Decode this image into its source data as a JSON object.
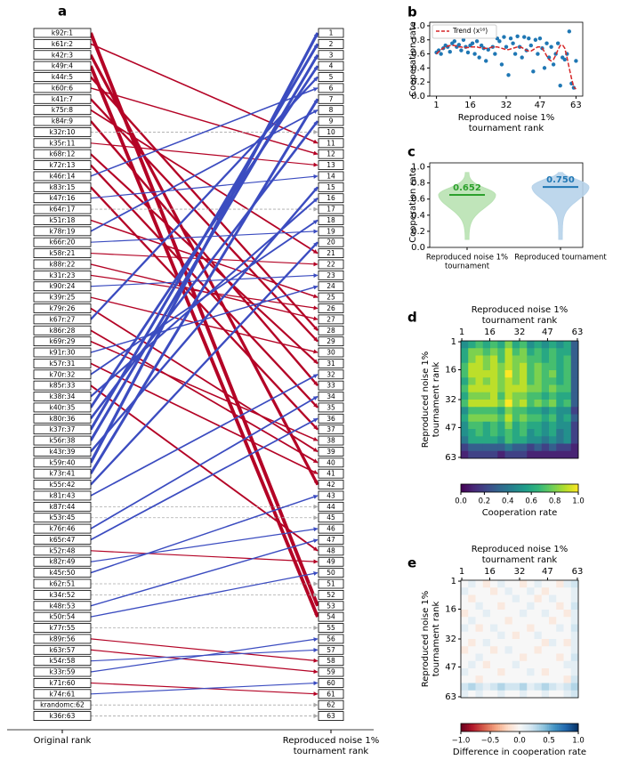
{
  "chart_data": [
    {
      "panel": "a",
      "type": "rank_flow",
      "categories": [
        "k92r:1",
        "k61r:2",
        "k42r:3",
        "k49r:4",
        "k44r:5",
        "k60r:6",
        "k41r:7",
        "k75r:8",
        "k84r:9",
        "k32r:10",
        "k35r:11",
        "k68r:12",
        "k72r:13",
        "k46r:14",
        "k83r:15",
        "k47r:16",
        "k64r:17",
        "k51r:18",
        "k78r:19",
        "k66r:20",
        "k58r:21",
        "k88r:22",
        "k31r:23",
        "k90r:24",
        "k39r:25",
        "k79r:26",
        "k67r:27",
        "k86r:28",
        "k69r:29",
        "k91r:30",
        "k57r:31",
        "k70r:32",
        "k85r:33",
        "k38r:34",
        "k40r:35",
        "k80r:36",
        "k37r:37",
        "k56r:38",
        "k43r:39",
        "k59r:40",
        "k73r:41",
        "k55r:42",
        "k81r:43",
        "k87r:44",
        "k53r:45",
        "k76r:46",
        "k65r:47",
        "k52r:48",
        "k82r:49",
        "k45r:50",
        "k62r:51",
        "k34r:52",
        "k48r:53",
        "k50r:54",
        "k77r:55",
        "k89r:56",
        "k63r:57",
        "k54r:58",
        "k33r:59",
        "k71r:60",
        "k74r:61",
        "krandomc:62",
        "k36r:63"
      ],
      "right_categories": [
        1,
        2,
        3,
        4,
        5,
        6,
        7,
        8,
        9,
        10,
        11,
        12,
        13,
        14,
        15,
        16,
        17,
        18,
        19,
        20,
        21,
        22,
        23,
        24,
        25,
        26,
        27,
        28,
        29,
        30,
        31,
        32,
        33,
        34,
        35,
        36,
        37,
        38,
        39,
        40,
        41,
        42,
        43,
        44,
        45,
        46,
        47,
        48,
        49,
        50,
        51,
        52,
        53,
        54,
        55,
        56,
        57,
        58,
        59,
        60,
        61,
        62,
        63
      ],
      "values": [
        53,
        11,
        42,
        54,
        28,
        12,
        29,
        21,
        33,
        10,
        13,
        31,
        35,
        6,
        37,
        14,
        17,
        25,
        8,
        19,
        22,
        27,
        26,
        23,
        30,
        39,
        5,
        40,
        38,
        24,
        41,
        18,
        48,
        16,
        4,
        9,
        2,
        3,
        15,
        1,
        7,
        20,
        32,
        44,
        45,
        34,
        36,
        49,
        46,
        43,
        51,
        52,
        47,
        50,
        55,
        58,
        59,
        57,
        56,
        61,
        60,
        62,
        63
      ],
      "xlabel": "Original rank",
      "x2label": [
        "Reproduced noise 1%",
        "tournament rank"
      ],
      "colors": {
        "up": "#3b4cc0",
        "down": "#b40426",
        "same": "#aaaaaa"
      }
    },
    {
      "panel": "b",
      "type": "scatter",
      "x": [
        1,
        2,
        3,
        4,
        5,
        6,
        7,
        8,
        9,
        10,
        11,
        12,
        13,
        14,
        15,
        16,
        17,
        18,
        19,
        20,
        21,
        22,
        23,
        24,
        25,
        26,
        27,
        28,
        29,
        30,
        31,
        32,
        33,
        34,
        35,
        36,
        37,
        38,
        39,
        40,
        41,
        42,
        43,
        44,
        45,
        46,
        47,
        48,
        49,
        50,
        51,
        52,
        53,
        54,
        55,
        56,
        57,
        58,
        59,
        60,
        61,
        62,
        63
      ],
      "series": [
        {
          "color": "#1f77b4",
          "values": [
            0.62,
            0.65,
            0.6,
            0.68,
            0.72,
            0.7,
            0.63,
            0.75,
            0.78,
            0.7,
            0.73,
            0.65,
            0.8,
            0.7,
            0.62,
            0.72,
            0.75,
            0.6,
            0.78,
            0.55,
            0.72,
            0.68,
            0.5,
            0.66,
            0.88,
            0.7,
            0.6,
            0.82,
            0.78,
            0.45,
            0.84,
            0.7,
            0.3,
            0.82,
            0.75,
            0.6,
            0.85,
            0.7,
            0.55,
            0.84,
            0.65,
            0.82,
            0.72,
            0.35,
            0.8,
            0.6,
            0.82,
            0.68,
            0.4,
            0.75,
            0.55,
            0.7,
            0.45,
            0.6,
            0.75,
            0.15,
            0.55,
            0.52,
            0.6,
            0.92,
            0.18,
            0.12,
            0.5
          ]
        },
        {
          "name": "Trend (x¹⁶)",
          "color": "#d62728",
          "style": "dashed",
          "values": [
            0.6,
            0.63,
            0.66,
            0.68,
            0.7,
            0.71,
            0.72,
            0.72,
            0.72,
            0.71,
            0.7,
            0.7,
            0.69,
            0.69,
            0.69,
            0.7,
            0.7,
            0.7,
            0.7,
            0.69,
            0.69,
            0.68,
            0.68,
            0.68,
            0.69,
            0.7,
            0.7,
            0.7,
            0.69,
            0.68,
            0.67,
            0.66,
            0.66,
            0.67,
            0.68,
            0.69,
            0.7,
            0.7,
            0.69,
            0.67,
            0.65,
            0.64,
            0.64,
            0.66,
            0.68,
            0.7,
            0.7,
            0.68,
            0.63,
            0.57,
            0.52,
            0.5,
            0.52,
            0.58,
            0.66,
            0.72,
            0.73,
            0.68,
            0.55,
            0.4,
            0.25,
            0.13,
            0.1
          ]
        }
      ],
      "xlim": [
        -2,
        66
      ],
      "ylim": [
        0,
        1.05
      ],
      "xticks": [
        1,
        16,
        32,
        47,
        63
      ],
      "yticks": [
        {
          "value": 0,
          "label": "0.0"
        },
        {
          "value": 0.2,
          "label": "0.2"
        },
        {
          "value": 0.4,
          "label": "0.4"
        },
        {
          "value": 0.6,
          "label": "0.6"
        },
        {
          "value": 0.8,
          "label": "0.8"
        },
        {
          "value": 1,
          "label": "1.0"
        }
      ],
      "xlabel": [
        "Reproduced noise 1%",
        "tournament rank"
      ],
      "ylabel": "Cooperation rate",
      "legend": "upper left"
    },
    {
      "panel": "c",
      "type": "violin",
      "categories": [
        [
          "Reproduced noise 1%",
          "tournament"
        ],
        [
          "Reproduced tournament"
        ]
      ],
      "means": [
        0.652,
        0.75
      ],
      "value_labels": [
        "0.652",
        "0.750"
      ],
      "mins": [
        0.1,
        0.1
      ],
      "maxs": [
        0.93,
        0.93
      ],
      "colors": [
        "#2ca02c",
        "#1f77b4"
      ],
      "fills": [
        "#b9e2b3",
        "#b7d3ea"
      ],
      "ylim": [
        0,
        1.05
      ],
      "yticks": [
        {
          "value": 0,
          "label": "0.0"
        },
        {
          "value": 0.2,
          "label": "0.2"
        },
        {
          "value": 0.4,
          "label": "0.4"
        },
        {
          "value": 0.6,
          "label": "0.6"
        },
        {
          "value": 0.8,
          "label": "0.8"
        },
        {
          "value": 1,
          "label": "1.0"
        }
      ],
      "ylabel": "Cooperation rate"
    },
    {
      "panel": "d",
      "type": "heatmap",
      "title": [
        "Reproduced noise 1%",
        "tournament rank"
      ],
      "ylabel": [
        "Reproduced noise 1%",
        "tournament rank"
      ],
      "xlim": [
        0.5,
        63.5
      ],
      "ylim": [
        63.5,
        0.5
      ],
      "xticks": [
        1,
        16,
        32,
        47,
        63
      ],
      "yticks": [
        1,
        16,
        32,
        47,
        63
      ],
      "colormap": "viridis",
      "clim": [
        0,
        1
      ],
      "cticks": [
        {
          "value": 0,
          "label": "0.0"
        },
        {
          "value": 0.2,
          "label": "0.2"
        },
        {
          "value": 0.4,
          "label": "0.4"
        },
        {
          "value": 0.6,
          "label": "0.6"
        },
        {
          "value": 0.8,
          "label": "0.8"
        },
        {
          "value": 1,
          "label": "1.0"
        }
      ],
      "clabel": "Cooperation rate",
      "values": [
        [
          0.5,
          0.6,
          0.7,
          0.6,
          0.7,
          0.6,
          0.8,
          0.6,
          0.7,
          0.5,
          0.6,
          0.5,
          0.6,
          0.5,
          0.6,
          0.3
        ],
        [
          0.6,
          0.8,
          0.8,
          0.7,
          0.8,
          0.7,
          0.9,
          0.7,
          0.8,
          0.6,
          0.7,
          0.6,
          0.7,
          0.6,
          0.6,
          0.3
        ],
        [
          0.6,
          0.8,
          0.9,
          0.8,
          0.9,
          0.7,
          0.9,
          0.8,
          0.8,
          0.7,
          0.7,
          0.6,
          0.7,
          0.6,
          0.7,
          0.3
        ],
        [
          0.7,
          0.9,
          0.9,
          0.8,
          0.9,
          0.8,
          0.9,
          0.8,
          0.9,
          0.7,
          0.8,
          0.7,
          0.7,
          0.6,
          0.7,
          0.3
        ],
        [
          0.7,
          0.9,
          0.9,
          0.9,
          0.9,
          0.8,
          1.0,
          0.8,
          0.9,
          0.7,
          0.8,
          0.7,
          0.8,
          0.6,
          0.7,
          0.3
        ],
        [
          0.6,
          0.8,
          0.9,
          0.8,
          0.9,
          0.8,
          0.9,
          0.8,
          0.9,
          0.7,
          0.8,
          0.7,
          0.7,
          0.6,
          0.7,
          0.3
        ],
        [
          0.7,
          0.9,
          0.9,
          0.9,
          0.9,
          0.8,
          0.9,
          0.9,
          0.9,
          0.8,
          0.8,
          0.7,
          0.8,
          0.7,
          0.7,
          0.3
        ],
        [
          0.6,
          0.8,
          0.8,
          0.8,
          0.9,
          0.7,
          0.9,
          0.8,
          0.8,
          0.7,
          0.7,
          0.6,
          0.7,
          0.6,
          0.6,
          0.3
        ],
        [
          0.7,
          0.9,
          0.9,
          0.9,
          0.9,
          0.8,
          1.0,
          0.8,
          0.9,
          0.7,
          0.8,
          0.7,
          0.8,
          0.6,
          0.7,
          0.3
        ],
        [
          0.5,
          0.7,
          0.7,
          0.7,
          0.7,
          0.6,
          0.8,
          0.7,
          0.7,
          0.6,
          0.6,
          0.5,
          0.6,
          0.5,
          0.5,
          0.2
        ],
        [
          0.6,
          0.8,
          0.8,
          0.8,
          0.8,
          0.7,
          0.9,
          0.7,
          0.8,
          0.7,
          0.7,
          0.6,
          0.7,
          0.5,
          0.6,
          0.3
        ],
        [
          0.5,
          0.7,
          0.7,
          0.6,
          0.7,
          0.6,
          0.8,
          0.6,
          0.7,
          0.6,
          0.6,
          0.5,
          0.6,
          0.5,
          0.5,
          0.2
        ],
        [
          0.5,
          0.6,
          0.7,
          0.6,
          0.7,
          0.6,
          0.7,
          0.6,
          0.7,
          0.5,
          0.6,
          0.5,
          0.6,
          0.4,
          0.5,
          0.2
        ],
        [
          0.4,
          0.6,
          0.6,
          0.6,
          0.6,
          0.5,
          0.7,
          0.6,
          0.6,
          0.5,
          0.5,
          0.4,
          0.5,
          0.4,
          0.5,
          0.2
        ],
        [
          0.2,
          0.3,
          0.3,
          0.3,
          0.3,
          0.3,
          0.4,
          0.3,
          0.3,
          0.2,
          0.3,
          0.2,
          0.3,
          0.2,
          0.2,
          0.1
        ],
        [
          0.1,
          0.2,
          0.2,
          0.2,
          0.2,
          0.1,
          0.2,
          0.2,
          0.2,
          0.1,
          0.1,
          0.1,
          0.1,
          0.1,
          0.1,
          0.1
        ]
      ]
    },
    {
      "panel": "e",
      "type": "heatmap",
      "title": [
        "Reproduced noise 1%",
        "tournament rank"
      ],
      "ylabel": [
        "Reproduced noise 1%",
        "tournament rank"
      ],
      "xlim": [
        0.5,
        63.5
      ],
      "ylim": [
        63.5,
        0.5
      ],
      "xticks": [
        1,
        16,
        32,
        47,
        63
      ],
      "yticks": [
        1,
        16,
        32,
        47,
        63
      ],
      "colormap": "RdBu",
      "clim": [
        -1,
        1
      ],
      "cticks": [
        {
          "value": -1,
          "label": "−1.0"
        },
        {
          "value": -0.5,
          "label": "−0.5"
        },
        {
          "value": 0,
          "label": "0.0"
        },
        {
          "value": 0.5,
          "label": "0.5"
        },
        {
          "value": 1,
          "label": "1.0"
        }
      ],
      "clabel": "Difference in cooperation rate",
      "values": [
        [
          0,
          0.1,
          0,
          -0.1,
          0,
          0.1,
          0,
          0,
          -0.1,
          0,
          0.1,
          0,
          0,
          -0.1,
          0.1,
          0.2
        ],
        [
          0.1,
          0,
          0,
          0,
          -0.1,
          0,
          0.1,
          0,
          0,
          0.1,
          0,
          -0.1,
          0,
          0,
          0,
          0.1
        ],
        [
          0,
          -0.1,
          0,
          0,
          0,
          0,
          0,
          0.1,
          0,
          0,
          -0.1,
          0,
          0.1,
          0,
          0,
          0.1
        ],
        [
          0,
          0,
          0.1,
          0,
          0,
          -0.1,
          0,
          0,
          0,
          0.1,
          0,
          0,
          0,
          -0.1,
          0,
          0.2
        ],
        [
          -0.1,
          0,
          0,
          0.1,
          0,
          0,
          0,
          0,
          0.1,
          0,
          0,
          0.1,
          0,
          0,
          -0.1,
          0.1
        ],
        [
          0,
          0.1,
          0,
          0,
          0,
          0,
          -0.1,
          0,
          0,
          0,
          0,
          0,
          -0.1,
          0,
          0,
          0.1
        ],
        [
          0.1,
          0,
          -0.1,
          0,
          0.1,
          0,
          0,
          0,
          0,
          -0.1,
          0,
          0,
          0,
          0.1,
          0,
          0.2
        ],
        [
          0,
          0,
          0,
          0,
          0,
          0.1,
          0,
          -0.1,
          0,
          0,
          0.1,
          0,
          0,
          0,
          0,
          0.1
        ],
        [
          0,
          -0.1,
          0,
          0.1,
          0,
          0,
          0,
          0,
          0,
          0,
          0,
          -0.1,
          0.1,
          0,
          -0.1,
          0.1
        ],
        [
          -0.1,
          0,
          0,
          0,
          -0.1,
          0,
          0.1,
          0,
          0,
          0,
          -0.1,
          0,
          0,
          0,
          0,
          0.1
        ],
        [
          0,
          0,
          0.1,
          0,
          0,
          0,
          0,
          0,
          -0.1,
          0,
          0,
          0,
          0,
          -0.1,
          0,
          0.2
        ],
        [
          0,
          0.1,
          0,
          -0.1,
          0,
          0,
          0,
          0.1,
          0,
          0,
          0,
          0,
          0,
          0,
          0.1,
          0.1
        ],
        [
          0.1,
          0,
          0,
          0,
          0,
          -0.1,
          0,
          0,
          0,
          0.1,
          0,
          -0.1,
          0,
          0,
          0,
          0.1
        ],
        [
          0,
          0,
          -0.1,
          0,
          0,
          0,
          0,
          0,
          0,
          0,
          0,
          0,
          0,
          0,
          -0.1,
          0.2
        ],
        [
          0.2,
          0.3,
          0.2,
          0.1,
          0.2,
          0.3,
          0.2,
          0.2,
          0.3,
          0.1,
          0.2,
          0.3,
          0.2,
          0.1,
          0.2,
          0.3
        ],
        [
          0.1,
          0,
          0.1,
          0,
          0,
          0.1,
          0,
          0,
          0.1,
          0,
          0,
          0.1,
          0,
          0,
          0.1,
          0.2
        ]
      ]
    }
  ]
}
